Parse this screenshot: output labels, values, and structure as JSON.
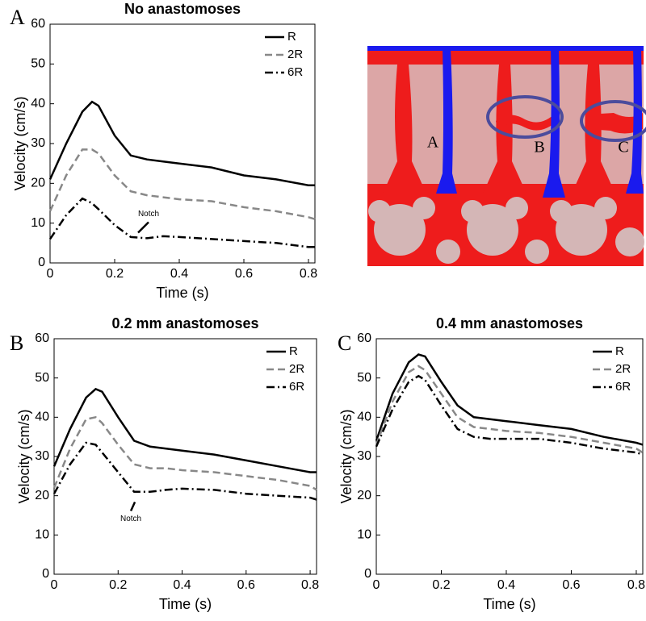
{
  "chart_data": [
    {
      "type": "line",
      "panel": "A",
      "title": "No anastomoses",
      "xlabel": "Time (s)",
      "ylabel": "Velocity (cm/s)",
      "x": [
        0,
        0.05,
        0.1,
        0.13,
        0.15,
        0.2,
        0.25,
        0.3,
        0.35,
        0.4,
        0.5,
        0.6,
        0.7,
        0.8,
        0.82
      ],
      "series": [
        {
          "name": "R",
          "color": "#000000",
          "dash": "solid",
          "values": [
            21,
            30,
            38,
            40.5,
            39.5,
            32,
            27,
            26,
            25.5,
            25,
            24,
            22,
            21,
            19.5,
            19.5
          ]
        },
        {
          "name": "2R",
          "color": "#888888",
          "dash": "dash",
          "values": [
            13,
            22,
            28.5,
            28.5,
            27.5,
            22,
            18,
            17,
            16.5,
            16,
            15.5,
            14,
            13,
            11.5,
            11
          ]
        },
        {
          "name": "6R",
          "color": "#000000",
          "dash": "dashdot",
          "values": [
            6,
            12,
            16.2,
            15,
            13.5,
            9.5,
            6.5,
            6.2,
            6.7,
            6.5,
            6,
            5.5,
            5,
            4,
            4
          ]
        }
      ],
      "annotations": [
        {
          "text": "Notch",
          "x": 0.265,
          "y": 7
        }
      ],
      "xlim": [
        0,
        0.82
      ],
      "xticks": [
        0,
        0.2,
        0.4,
        0.6,
        0.8
      ],
      "ylim": [
        0,
        60
      ],
      "yticks": [
        0,
        10,
        20,
        30,
        40,
        50,
        60
      ],
      "legend": "upper right"
    },
    {
      "type": "line",
      "panel": "B",
      "title": "0.2 mm anastomoses",
      "xlabel": "Time (s)",
      "ylabel": "Velocity (cm/s)",
      "x": [
        0,
        0.05,
        0.1,
        0.13,
        0.15,
        0.2,
        0.25,
        0.3,
        0.35,
        0.4,
        0.5,
        0.6,
        0.7,
        0.8,
        0.82
      ],
      "series": [
        {
          "name": "R",
          "color": "#000000",
          "dash": "solid",
          "values": [
            27.5,
            37,
            45,
            47.2,
            46.5,
            40,
            34,
            32.5,
            32,
            31.5,
            30.5,
            29,
            27.5,
            26,
            26
          ]
        },
        {
          "name": "2R",
          "color": "#888888",
          "dash": "dash",
          "values": [
            22,
            32,
            39.5,
            40,
            38.5,
            33,
            28,
            27,
            27,
            26.5,
            26,
            25,
            24,
            22.5,
            21.5
          ]
        },
        {
          "name": "6R",
          "color": "#000000",
          "dash": "dashdot",
          "values": [
            20.5,
            28,
            33.5,
            33,
            31,
            26,
            21,
            21,
            21.5,
            21.8,
            21.5,
            20.5,
            20,
            19.5,
            19
          ]
        }
      ],
      "annotations": [
        {
          "text": "Notch",
          "x": 0.26,
          "y": 19
        }
      ],
      "xlim": [
        0,
        0.82
      ],
      "xticks": [
        0,
        0.2,
        0.4,
        0.6,
        0.8
      ],
      "ylim": [
        0,
        60
      ],
      "yticks": [
        0,
        10,
        20,
        30,
        40,
        50,
        60
      ],
      "legend": "upper right"
    },
    {
      "type": "line",
      "panel": "C",
      "title": "0.4 mm anastomoses",
      "xlabel": "Time (s)",
      "ylabel": "Velocity (cm/s)",
      "x": [
        0,
        0.05,
        0.1,
        0.13,
        0.15,
        0.2,
        0.25,
        0.3,
        0.35,
        0.4,
        0.5,
        0.6,
        0.7,
        0.8,
        0.82
      ],
      "series": [
        {
          "name": "R",
          "color": "#000000",
          "dash": "solid",
          "values": [
            34,
            46,
            54,
            56,
            55.5,
            49,
            43,
            40,
            39.5,
            39,
            38,
            37,
            35,
            33.5,
            33
          ]
        },
        {
          "name": "2R",
          "color": "#888888",
          "dash": "dash",
          "values": [
            33,
            44,
            51.5,
            53,
            52,
            46,
            40,
            37.5,
            37,
            36.5,
            36,
            35,
            33.5,
            32,
            31
          ]
        },
        {
          "name": "6R",
          "color": "#000000",
          "dash": "dashdot",
          "values": [
            32.5,
            42,
            49,
            50.5,
            49.5,
            43,
            37,
            35,
            34.5,
            34.5,
            34.5,
            33.5,
            32,
            31,
            30.5
          ]
        }
      ],
      "xlim": [
        0,
        0.82
      ],
      "xticks": [
        0,
        0.2,
        0.4,
        0.6,
        0.8
      ],
      "ylim": [
        0,
        60
      ],
      "yticks": [
        0,
        10,
        20,
        30,
        40,
        50,
        60
      ],
      "legend": "upper right"
    }
  ],
  "diagram": {
    "labels": [
      "A",
      "B",
      "C"
    ]
  }
}
